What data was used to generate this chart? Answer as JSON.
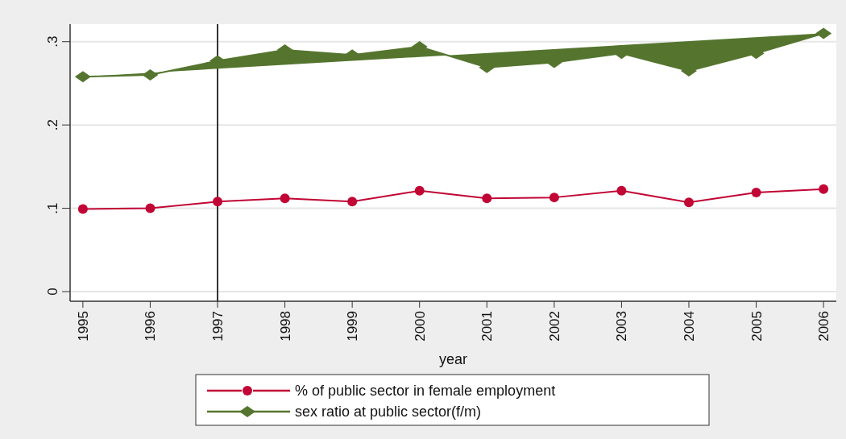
{
  "chart_data": {
    "type": "line",
    "xlabel": "year",
    "categories": [
      "1995",
      "1996",
      "1997",
      "1998",
      "1999",
      "2000",
      "2001",
      "2002",
      "2003",
      "2004",
      "2005",
      "2006"
    ],
    "series": [
      {
        "name": "% of public sector in female employment",
        "color": "#c10534",
        "marker": "circle",
        "values": [
          0.099,
          0.1,
          0.108,
          0.112,
          0.108,
          0.121,
          0.112,
          0.113,
          0.121,
          0.107,
          0.119,
          0.123
        ]
      },
      {
        "name": "sex ratio at public sector(f/m)",
        "color": "#55752f",
        "marker": "diamond",
        "values": [
          0.258,
          0.26,
          0.277,
          0.29,
          0.284,
          0.294,
          0.269,
          0.275,
          0.286,
          0.265,
          0.286,
          0.31
        ]
      }
    ],
    "ylim": [
      -0.0116,
      0.321
    ],
    "yticks": [
      {
        "value": 0,
        "label": "0"
      },
      {
        "value": 0.1,
        "label": ".1"
      },
      {
        "value": 0.2,
        "label": ".2"
      },
      {
        "value": 0.3,
        "label": ".3"
      }
    ],
    "grid": "y",
    "legend": "bottom",
    "ref_lines": [
      {
        "axis": "x",
        "value": "1997",
        "color": "#333333"
      }
    ]
  }
}
